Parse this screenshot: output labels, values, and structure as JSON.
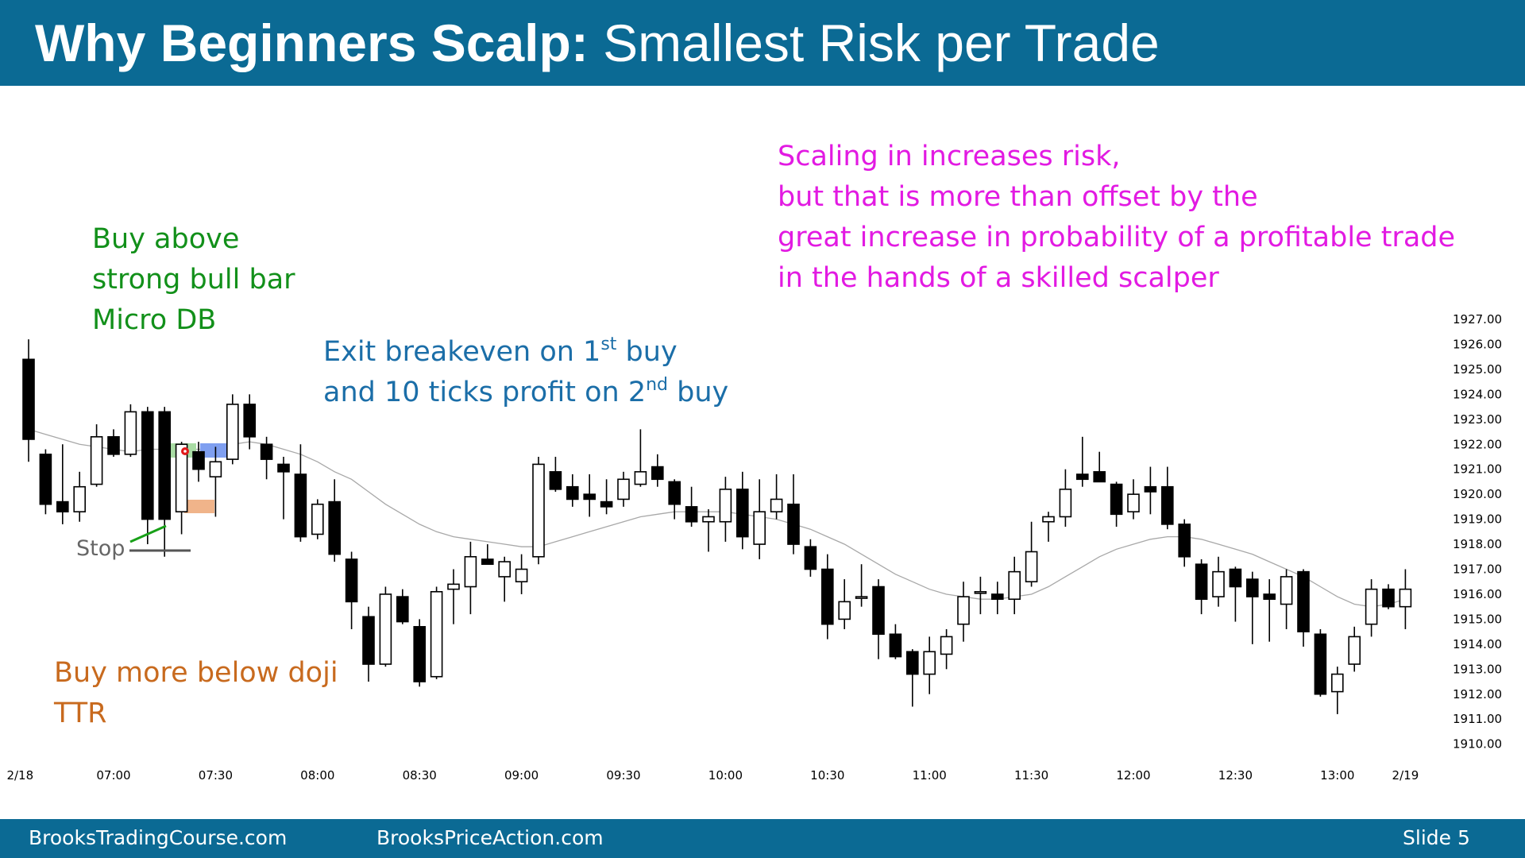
{
  "header": {
    "title_bold": "Why Beginners Scalp:",
    "title_regular": "Smallest Risk per Trade"
  },
  "annotations": {
    "buy_above": [
      "Buy above",
      "strong bull bar",
      "Micro DB"
    ],
    "exit_line1_pre": "Exit breakeven on 1",
    "exit_line1_sup": "st",
    "exit_line1_post": " buy",
    "exit_line2_pre": "and 10 ticks profit on 2",
    "exit_line2_sup": "nd",
    "exit_line2_post": " buy",
    "scaling": [
      "Scaling in increases risk,",
      "but that is more than offset by the",
      "great increase in probability of a profitable trade",
      "in the hands of a skilled scalper"
    ],
    "buy_more": [
      "Buy more below doji",
      "TTR"
    ],
    "stop": "Stop"
  },
  "footer": {
    "left": "BrooksTradingCourse.com",
    "middle": "BrooksPriceAction.com",
    "right": "Slide  5"
  },
  "colors": {
    "header_bg": "#0b6a94",
    "green": "#12901a",
    "blue": "#1b6ea8",
    "magenta": "#e21ae2",
    "orange": "#c86a1e",
    "ema": "#a8a8a8"
  },
  "chart_data": {
    "type": "candlestick",
    "title": "",
    "y_ticks": [
      "1927.00",
      "1926.00",
      "1925.00",
      "1924.00",
      "1923.00",
      "1922.00",
      "1921.00",
      "1920.00",
      "1919.00",
      "1918.00",
      "1917.00",
      "1916.00",
      "1915.00",
      "1914.00",
      "1913.00",
      "1912.00",
      "1911.00",
      "1910.00"
    ],
    "x_ticks": [
      {
        "label": "2/18",
        "bar": -0.5
      },
      {
        "label": "07:00",
        "bar": 5
      },
      {
        "label": "07:30",
        "bar": 11
      },
      {
        "label": "08:00",
        "bar": 17
      },
      {
        "label": "08:30",
        "bar": 23
      },
      {
        "label": "09:00",
        "bar": 29
      },
      {
        "label": "09:30",
        "bar": 35
      },
      {
        "label": "10:00",
        "bar": 41
      },
      {
        "label": "10:30",
        "bar": 47
      },
      {
        "label": "11:00",
        "bar": 53
      },
      {
        "label": "11:30",
        "bar": 59
      },
      {
        "label": "12:00",
        "bar": 65
      },
      {
        "label": "12:30",
        "bar": 71
      },
      {
        "label": "13:00",
        "bar": 77
      },
      {
        "label": "2/19",
        "bar": 81
      }
    ],
    "ylim": [
      1910,
      1927
    ],
    "candles": [
      {
        "o": 1925.4,
        "h": 1926.2,
        "l": 1921.3,
        "c": 1922.2
      },
      {
        "o": 1921.6,
        "h": 1921.8,
        "l": 1919.2,
        "c": 1919.6
      },
      {
        "o": 1919.7,
        "h": 1922.0,
        "l": 1918.8,
        "c": 1919.3
      },
      {
        "o": 1919.3,
        "h": 1920.9,
        "l": 1918.9,
        "c": 1920.3
      },
      {
        "o": 1920.4,
        "h": 1922.8,
        "l": 1920.3,
        "c": 1922.3
      },
      {
        "o": 1922.3,
        "h": 1922.6,
        "l": 1921.5,
        "c": 1921.6
      },
      {
        "o": 1921.6,
        "h": 1923.6,
        "l": 1921.5,
        "c": 1923.3
      },
      {
        "o": 1923.3,
        "h": 1923.5,
        "l": 1918.0,
        "c": 1919.0
      },
      {
        "o": 1923.3,
        "h": 1923.5,
        "l": 1917.5,
        "c": 1919.0
      },
      {
        "o": 1919.3,
        "h": 1922.1,
        "l": 1918.4,
        "c": 1922.0
      },
      {
        "o": 1921.7,
        "h": 1922.1,
        "l": 1920.5,
        "c": 1921.0
      },
      {
        "o": 1920.7,
        "h": 1921.9,
        "l": 1919.1,
        "c": 1921.3
      },
      {
        "o": 1921.4,
        "h": 1924.0,
        "l": 1921.2,
        "c": 1923.6
      },
      {
        "o": 1923.6,
        "h": 1924.0,
        "l": 1921.8,
        "c": 1922.3
      },
      {
        "o": 1922.0,
        "h": 1922.3,
        "l": 1920.6,
        "c": 1921.4
      },
      {
        "o": 1921.2,
        "h": 1921.5,
        "l": 1919.0,
        "c": 1920.9
      },
      {
        "o": 1920.8,
        "h": 1922.0,
        "l": 1918.1,
        "c": 1918.3
      },
      {
        "o": 1918.4,
        "h": 1919.8,
        "l": 1918.2,
        "c": 1919.6
      },
      {
        "o": 1919.7,
        "h": 1920.6,
        "l": 1917.3,
        "c": 1917.6
      },
      {
        "o": 1917.4,
        "h": 1917.7,
        "l": 1914.6,
        "c": 1915.7
      },
      {
        "o": 1915.1,
        "h": 1915.5,
        "l": 1912.5,
        "c": 1913.2
      },
      {
        "o": 1913.2,
        "h": 1916.3,
        "l": 1913.1,
        "c": 1916.0
      },
      {
        "o": 1915.9,
        "h": 1916.2,
        "l": 1914.8,
        "c": 1914.9
      },
      {
        "o": 1914.7,
        "h": 1915.0,
        "l": 1912.3,
        "c": 1912.5
      },
      {
        "o": 1912.7,
        "h": 1916.3,
        "l": 1912.6,
        "c": 1916.1
      },
      {
        "o": 1916.2,
        "h": 1917.0,
        "l": 1914.8,
        "c": 1916.4
      },
      {
        "o": 1916.3,
        "h": 1918.1,
        "l": 1915.2,
        "c": 1917.5
      },
      {
        "o": 1917.4,
        "h": 1918.0,
        "l": 1917.2,
        "c": 1917.2
      },
      {
        "o": 1916.7,
        "h": 1917.5,
        "l": 1915.7,
        "c": 1917.3
      },
      {
        "o": 1916.5,
        "h": 1917.6,
        "l": 1916.0,
        "c": 1917.0
      },
      {
        "o": 1917.5,
        "h": 1921.5,
        "l": 1917.2,
        "c": 1921.2
      },
      {
        "o": 1920.9,
        "h": 1921.5,
        "l": 1920.1,
        "c": 1920.2
      },
      {
        "o": 1920.3,
        "h": 1920.8,
        "l": 1919.5,
        "c": 1919.8
      },
      {
        "o": 1920.0,
        "h": 1920.8,
        "l": 1919.1,
        "c": 1919.8
      },
      {
        "o": 1919.7,
        "h": 1920.6,
        "l": 1919.2,
        "c": 1919.5
      },
      {
        "o": 1919.8,
        "h": 1920.9,
        "l": 1919.5,
        "c": 1920.6
      },
      {
        "o": 1920.4,
        "h": 1922.6,
        "l": 1920.3,
        "c": 1920.9
      },
      {
        "o": 1921.1,
        "h": 1921.6,
        "l": 1920.3,
        "c": 1920.6
      },
      {
        "o": 1920.5,
        "h": 1920.6,
        "l": 1919.0,
        "c": 1919.6
      },
      {
        "o": 1919.5,
        "h": 1920.3,
        "l": 1918.7,
        "c": 1918.9
      },
      {
        "o": 1918.9,
        "h": 1919.4,
        "l": 1917.7,
        "c": 1919.1
      },
      {
        "o": 1918.9,
        "h": 1920.7,
        "l": 1918.1,
        "c": 1920.2
      },
      {
        "o": 1920.2,
        "h": 1920.9,
        "l": 1917.8,
        "c": 1918.3
      },
      {
        "o": 1918.0,
        "h": 1920.6,
        "l": 1917.4,
        "c": 1919.3
      },
      {
        "o": 1919.3,
        "h": 1920.8,
        "l": 1919.0,
        "c": 1919.8
      },
      {
        "o": 1919.6,
        "h": 1920.8,
        "l": 1917.6,
        "c": 1918.0
      },
      {
        "o": 1917.9,
        "h": 1918.2,
        "l": 1916.7,
        "c": 1917.0
      },
      {
        "o": 1917.0,
        "h": 1917.6,
        "l": 1914.2,
        "c": 1914.8
      },
      {
        "o": 1915.0,
        "h": 1916.6,
        "l": 1914.6,
        "c": 1915.7
      },
      {
        "o": 1915.9,
        "h": 1917.2,
        "l": 1915.5,
        "c": 1915.9
      },
      {
        "o": 1916.3,
        "h": 1916.6,
        "l": 1913.4,
        "c": 1914.4
      },
      {
        "o": 1914.4,
        "h": 1914.8,
        "l": 1913.4,
        "c": 1913.5
      },
      {
        "o": 1913.7,
        "h": 1913.8,
        "l": 1911.5,
        "c": 1912.8
      },
      {
        "o": 1912.8,
        "h": 1914.3,
        "l": 1912.0,
        "c": 1913.7
      },
      {
        "o": 1913.6,
        "h": 1914.6,
        "l": 1913.0,
        "c": 1914.3
      },
      {
        "o": 1914.8,
        "h": 1916.5,
        "l": 1914.1,
        "c": 1915.9
      },
      {
        "o": 1916.1,
        "h": 1916.7,
        "l": 1915.2,
        "c": 1916.1
      },
      {
        "o": 1916.0,
        "h": 1916.5,
        "l": 1915.2,
        "c": 1915.8
      },
      {
        "o": 1915.8,
        "h": 1917.5,
        "l": 1915.2,
        "c": 1916.9
      },
      {
        "o": 1916.5,
        "h": 1918.9,
        "l": 1916.3,
        "c": 1917.7
      },
      {
        "o": 1918.9,
        "h": 1919.3,
        "l": 1918.1,
        "c": 1919.1
      },
      {
        "o": 1919.1,
        "h": 1921.0,
        "l": 1918.7,
        "c": 1920.2
      },
      {
        "o": 1920.8,
        "h": 1922.3,
        "l": 1920.3,
        "c": 1920.6
      },
      {
        "o": 1920.9,
        "h": 1921.7,
        "l": 1920.6,
        "c": 1920.5
      },
      {
        "o": 1920.4,
        "h": 1920.5,
        "l": 1918.7,
        "c": 1919.2
      },
      {
        "o": 1919.3,
        "h": 1920.6,
        "l": 1919.0,
        "c": 1920.0
      },
      {
        "o": 1920.3,
        "h": 1921.1,
        "l": 1919.2,
        "c": 1920.1
      },
      {
        "o": 1920.3,
        "h": 1921.1,
        "l": 1918.6,
        "c": 1918.8
      },
      {
        "o": 1918.8,
        "h": 1919.0,
        "l": 1917.1,
        "c": 1917.5
      },
      {
        "o": 1917.2,
        "h": 1917.4,
        "l": 1915.2,
        "c": 1915.8
      },
      {
        "o": 1915.9,
        "h": 1917.5,
        "l": 1915.5,
        "c": 1916.9
      },
      {
        "o": 1917.0,
        "h": 1917.1,
        "l": 1914.9,
        "c": 1916.3
      },
      {
        "o": 1916.6,
        "h": 1916.9,
        "l": 1914.0,
        "c": 1915.9
      },
      {
        "o": 1916.0,
        "h": 1916.6,
        "l": 1914.1,
        "c": 1915.8
      },
      {
        "o": 1915.6,
        "h": 1917.0,
        "l": 1914.6,
        "c": 1916.7
      },
      {
        "o": 1916.9,
        "h": 1917.0,
        "l": 1913.9,
        "c": 1914.5
      },
      {
        "o": 1914.4,
        "h": 1914.6,
        "l": 1911.9,
        "c": 1912.0
      },
      {
        "o": 1912.1,
        "h": 1913.1,
        "l": 1911.2,
        "c": 1912.8
      },
      {
        "o": 1913.2,
        "h": 1914.7,
        "l": 1912.9,
        "c": 1914.3
      },
      {
        "o": 1914.8,
        "h": 1916.6,
        "l": 1914.3,
        "c": 1916.2
      },
      {
        "o": 1916.2,
        "h": 1916.4,
        "l": 1915.4,
        "c": 1915.5
      },
      {
        "o": 1915.5,
        "h": 1917.0,
        "l": 1914.6,
        "c": 1916.2
      }
    ],
    "ema": [
      1922.6,
      1922.4,
      1922.2,
      1922.0,
      1921.9,
      1921.8,
      1921.7,
      1921.8,
      1921.8,
      1921.8,
      1921.8,
      1921.8,
      1922.0,
      1922.1,
      1922.0,
      1921.8,
      1921.6,
      1921.3,
      1920.9,
      1920.6,
      1920.1,
      1919.6,
      1919.2,
      1918.8,
      1918.5,
      1918.3,
      1918.2,
      1918.1,
      1918.0,
      1917.9,
      1917.9,
      1918.1,
      1918.3,
      1918.5,
      1918.7,
      1918.9,
      1919.1,
      1919.2,
      1919.3,
      1919.3,
      1919.3,
      1919.3,
      1919.2,
      1919.1,
      1919.0,
      1918.8,
      1918.6,
      1918.3,
      1918.0,
      1917.6,
      1917.2,
      1916.8,
      1916.5,
      1916.2,
      1916.0,
      1915.9,
      1915.8,
      1915.8,
      1915.9,
      1916.0,
      1916.3,
      1916.7,
      1917.1,
      1917.5,
      1917.8,
      1918.0,
      1918.2,
      1918.3,
      1918.3,
      1918.2,
      1918.0,
      1917.8,
      1917.6,
      1917.3,
      1917.0,
      1916.7,
      1916.3,
      1915.9,
      1915.6,
      1915.5,
      1915.6,
      1915.8
    ],
    "markers": {
      "stop_price": 1917.0
    }
  }
}
